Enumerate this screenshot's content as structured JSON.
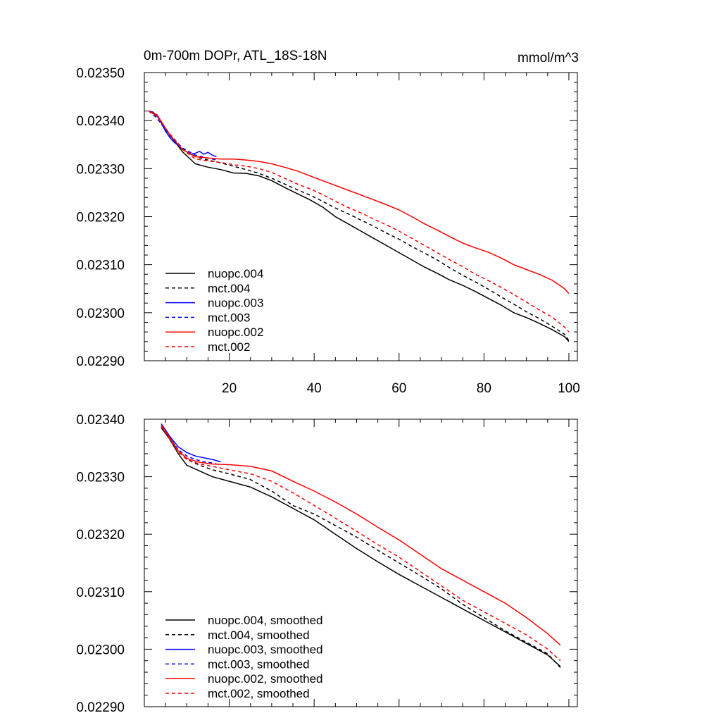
{
  "chart_data": [
    {
      "type": "line",
      "title": "0m-700m DOPr, ATL_18S-18N",
      "units": "mmol/m^3",
      "xlim": [
        0,
        102
      ],
      "ylim": [
        0.0229,
        0.0235
      ],
      "xticks": [
        20,
        40,
        60,
        80,
        100
      ],
      "xtick_labels": [
        "20",
        "40",
        "60",
        "80",
        "100"
      ],
      "yticks": [
        0.0229,
        0.023,
        0.0231,
        0.0232,
        0.0233,
        0.0234,
        0.0235
      ],
      "ytick_labels": [
        "0.02290",
        "0.02300",
        "0.02310",
        "0.02320",
        "0.02330",
        "0.02340",
        "0.02350"
      ],
      "grid": false,
      "legend_position": "bottom-left",
      "series": [
        {
          "name": "nuopc.004",
          "color": "#000000",
          "dash": "solid",
          "x": [
            1,
            3,
            6,
            9,
            12,
            15,
            18,
            21,
            24,
            27,
            30,
            33,
            36,
            39,
            42,
            45,
            48,
            51,
            54,
            57,
            60,
            63,
            66,
            69,
            72,
            75,
            78,
            81,
            84,
            87,
            90,
            93,
            96,
            99,
            100
          ],
          "y": [
            0.02342,
            0.02341,
            0.02337,
            0.023335,
            0.02331,
            0.023303,
            0.023298,
            0.023291,
            0.02329,
            0.023285,
            0.023275,
            0.023261,
            0.023248,
            0.023235,
            0.02322,
            0.0232,
            0.023185,
            0.02317,
            0.023155,
            0.02314,
            0.023125,
            0.02311,
            0.023095,
            0.023082,
            0.023068,
            0.023057,
            0.023044,
            0.02303,
            0.023016,
            0.023,
            0.02299,
            0.022978,
            0.022965,
            0.02295,
            0.02294
          ]
        },
        {
          "name": "mct.004",
          "color": "#000000",
          "dash": "dashed",
          "x": [
            1,
            3,
            6,
            9,
            12,
            15,
            18,
            21,
            24,
            27,
            30,
            33,
            36,
            39,
            42,
            45,
            48,
            51,
            54,
            57,
            60,
            63,
            66,
            69,
            72,
            75,
            78,
            81,
            84,
            87,
            90,
            93,
            96,
            99,
            100
          ],
          "y": [
            0.02342,
            0.023408,
            0.023372,
            0.023342,
            0.023325,
            0.023318,
            0.023312,
            0.023305,
            0.023298,
            0.02329,
            0.02328,
            0.023268,
            0.023256,
            0.023245,
            0.023232,
            0.023218,
            0.023206,
            0.023193,
            0.02318,
            0.023166,
            0.023153,
            0.023138,
            0.023124,
            0.02311,
            0.023093,
            0.023078,
            0.023064,
            0.023049,
            0.023033,
            0.023018,
            0.023002,
            0.022988,
            0.022972,
            0.022955,
            0.022942
          ]
        },
        {
          "name": "nuopc.003",
          "color": "#0000ff",
          "dash": "solid",
          "x": [
            1,
            2,
            3,
            4,
            5,
            6,
            7,
            8,
            9,
            10,
            11,
            12,
            13,
            14,
            15,
            16,
            17
          ],
          "y": [
            0.02342,
            0.023418,
            0.02341,
            0.023395,
            0.023378,
            0.023365,
            0.023355,
            0.023348,
            0.02334,
            0.023335,
            0.02333,
            0.023332,
            0.023336,
            0.02333,
            0.023334,
            0.023328,
            0.023325
          ]
        },
        {
          "name": "mct.003",
          "color": "#0000ff",
          "dash": "dashed",
          "x": [
            1,
            3,
            6,
            9,
            12,
            15,
            17
          ],
          "y": [
            0.02342,
            0.023405,
            0.023368,
            0.023343,
            0.023328,
            0.023322,
            0.023318
          ]
        },
        {
          "name": "nuopc.002",
          "color": "#ff0000",
          "dash": "solid",
          "x": [
            1,
            3,
            6,
            9,
            12,
            15,
            18,
            21,
            24,
            27,
            30,
            33,
            36,
            39,
            42,
            45,
            48,
            51,
            54,
            57,
            60,
            63,
            66,
            69,
            72,
            75,
            78,
            81,
            84,
            87,
            90,
            93,
            96,
            99,
            100
          ],
          "y": [
            0.02342,
            0.023412,
            0.02337,
            0.02334,
            0.023325,
            0.023322,
            0.02332,
            0.02332,
            0.023318,
            0.023315,
            0.02331,
            0.023303,
            0.023295,
            0.023285,
            0.023275,
            0.023265,
            0.023255,
            0.023245,
            0.023235,
            0.023225,
            0.023214,
            0.0232,
            0.023185,
            0.023172,
            0.023158,
            0.023145,
            0.023135,
            0.023126,
            0.023114,
            0.0231,
            0.02309,
            0.02308,
            0.023068,
            0.02305,
            0.02304
          ]
        },
        {
          "name": "mct.002",
          "color": "#ff0000",
          "dash": "dashed",
          "x": [
            1,
            3,
            6,
            9,
            12,
            15,
            18,
            21,
            24,
            27,
            30,
            33,
            36,
            39,
            42,
            45,
            48,
            51,
            54,
            57,
            60,
            63,
            66,
            69,
            72,
            75,
            78,
            81,
            84,
            87,
            90,
            93,
            96,
            99,
            100
          ],
          "y": [
            0.02342,
            0.023408,
            0.023372,
            0.02334,
            0.02332,
            0.023316,
            0.023313,
            0.023308,
            0.023305,
            0.0233,
            0.023292,
            0.02328,
            0.023268,
            0.023258,
            0.023246,
            0.023232,
            0.023219,
            0.023208,
            0.023195,
            0.023183,
            0.02317,
            0.023155,
            0.02314,
            0.023125,
            0.02311,
            0.023096,
            0.02308,
            0.023067,
            0.023053,
            0.023038,
            0.023022,
            0.023006,
            0.022991,
            0.02297,
            0.02296
          ]
        }
      ]
    },
    {
      "type": "line",
      "title": "",
      "xlim": [
        0,
        102
      ],
      "ylim": [
        0.0229,
        0.0234
      ],
      "xticks": [
        20,
        40,
        60,
        80,
        100
      ],
      "xtick_labels": [],
      "yticks": [
        0.0229,
        0.023,
        0.0231,
        0.0232,
        0.0233,
        0.0234
      ],
      "ytick_labels": [
        "0.02290",
        "0.02300",
        "0.02310",
        "0.02320",
        "0.02330",
        "0.02340"
      ],
      "grid": false,
      "legend_position": "bottom-left",
      "series": [
        {
          "name": "nuopc.004, smoothed",
          "color": "#000000",
          "dash": "solid",
          "x": [
            4,
            6,
            8,
            10,
            13,
            16,
            20,
            25,
            30,
            35,
            40,
            45,
            50,
            55,
            60,
            65,
            70,
            75,
            80,
            85,
            90,
            95,
            98
          ],
          "y": [
            0.023385,
            0.023365,
            0.02334,
            0.02332,
            0.02331,
            0.0233,
            0.023292,
            0.023282,
            0.023265,
            0.023245,
            0.023225,
            0.0232,
            0.023175,
            0.023152,
            0.02313,
            0.02311,
            0.02309,
            0.02307,
            0.02305,
            0.02303,
            0.02301,
            0.02299,
            0.02297
          ]
        },
        {
          "name": "mct.004, smoothed",
          "color": "#000000",
          "dash": "dashed",
          "x": [
            4,
            6,
            8,
            10,
            13,
            16,
            20,
            25,
            30,
            35,
            40,
            45,
            50,
            55,
            60,
            65,
            70,
            75,
            80,
            85,
            90,
            95,
            98
          ],
          "y": [
            0.023387,
            0.023368,
            0.023345,
            0.02333,
            0.02332,
            0.023312,
            0.023305,
            0.023295,
            0.023275,
            0.02325,
            0.023235,
            0.023215,
            0.023195,
            0.023172,
            0.02315,
            0.023128,
            0.023105,
            0.023078,
            0.023055,
            0.023032,
            0.023012,
            0.022992,
            0.022968
          ]
        },
        {
          "name": "nuopc.003, smoothed",
          "color": "#0000ff",
          "dash": "solid",
          "x": [
            4,
            6,
            8,
            10,
            12,
            14,
            16,
            18
          ],
          "y": [
            0.023392,
            0.02337,
            0.023352,
            0.023342,
            0.023336,
            0.023333,
            0.02333,
            0.023326
          ]
        },
        {
          "name": "mct.003, smoothed",
          "color": "#0000ff",
          "dash": "dashed",
          "x": [
            4,
            6,
            8,
            10,
            12,
            14,
            16,
            18
          ],
          "y": [
            0.02339,
            0.023367,
            0.023347,
            0.023336,
            0.02333,
            0.023326,
            0.023324,
            0.02332
          ]
        },
        {
          "name": "nuopc.002, smoothed",
          "color": "#ff0000",
          "dash": "solid",
          "x": [
            4,
            6,
            8,
            10,
            13,
            16,
            20,
            25,
            30,
            35,
            40,
            45,
            50,
            55,
            60,
            65,
            70,
            75,
            80,
            85,
            90,
            95,
            98
          ],
          "y": [
            0.02339,
            0.023367,
            0.023345,
            0.023332,
            0.023325,
            0.023322,
            0.023321,
            0.023318,
            0.02331,
            0.023292,
            0.023275,
            0.023256,
            0.023235,
            0.023212,
            0.02319,
            0.023165,
            0.02314,
            0.02312,
            0.0231,
            0.02308,
            0.023055,
            0.023027,
            0.023007
          ]
        },
        {
          "name": "mct.002, smoothed",
          "color": "#ff0000",
          "dash": "dashed",
          "x": [
            4,
            6,
            8,
            10,
            13,
            16,
            20,
            25,
            30,
            35,
            40,
            45,
            50,
            55,
            60,
            65,
            70,
            75,
            80,
            85,
            90,
            95,
            98
          ],
          "y": [
            0.023388,
            0.023365,
            0.023343,
            0.02333,
            0.023322,
            0.023318,
            0.023312,
            0.023305,
            0.023292,
            0.023272,
            0.02325,
            0.023228,
            0.023205,
            0.023182,
            0.02316,
            0.023135,
            0.02311,
            0.023085,
            0.023065,
            0.023045,
            0.023025,
            0.023,
            0.02298
          ]
        }
      ]
    }
  ]
}
